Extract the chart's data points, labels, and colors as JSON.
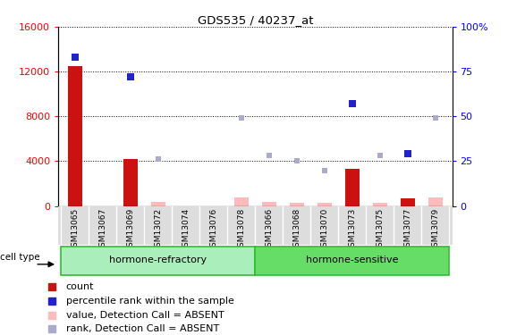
{
  "title": "GDS535 / 40237_at",
  "samples": [
    "GSM13065",
    "GSM13067",
    "GSM13069",
    "GSM13072",
    "GSM13074",
    "GSM13076",
    "GSM13078",
    "GSM13066",
    "GSM13068",
    "GSM13070",
    "GSM13073",
    "GSM13075",
    "GSM13077",
    "GSM13079"
  ],
  "counts": [
    12500,
    0,
    4200,
    0,
    0,
    0,
    0,
    0,
    0,
    0,
    3300,
    0,
    700,
    0
  ],
  "dark_blue_by_sample": {
    "GSM13065": 83,
    "GSM13069": 72,
    "GSM13073": 57,
    "GSM13077": 29
  },
  "light_blue_by_sample": {
    "GSM13072": 26,
    "GSM13078": 49,
    "GSM13066": 28,
    "GSM13068": 25,
    "GSM13070": 20,
    "GSM13075": 28,
    "GSM13079": 49
  },
  "absent_values_by_sample": {
    "GSM13072": 350,
    "GSM13078": 800,
    "GSM13066": 400,
    "GSM13068": 300,
    "GSM13070": 300,
    "GSM13073": 300,
    "GSM13075": 300,
    "GSM13079": 800
  },
  "ylim_left": [
    0,
    16000
  ],
  "ylim_right": [
    0,
    100
  ],
  "yticks_left": [
    0,
    4000,
    8000,
    12000,
    16000
  ],
  "yticks_right": [
    0,
    25,
    50,
    75,
    100
  ],
  "bar_color_dark": "#cc1111",
  "bar_color_light": "#ffbbbb",
  "dot_color_dark_blue": "#2222cc",
  "dot_color_light_blue": "#aaaacc",
  "group_color_refractory": "#aaeebb",
  "group_color_sensitive": "#66dd66",
  "cell_type_label": "cell type",
  "legend_labels": [
    "count",
    "percentile rank within the sample",
    "value, Detection Call = ABSENT",
    "rank, Detection Call = ABSENT"
  ],
  "legend_colors": [
    "#cc1111",
    "#2222cc",
    "#ffbbbb",
    "#aaaacc"
  ]
}
